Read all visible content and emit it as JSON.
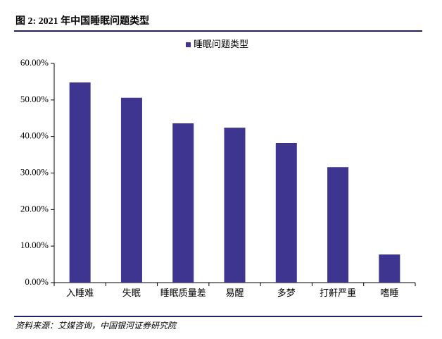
{
  "chart_data": {
    "type": "bar",
    "title": "图 2: 2021 年中国睡眠问题类型",
    "source": "资料来源：艾媒咨询，中国银河证券研究院",
    "categories": [
      "入睡难",
      "失眠",
      "睡眠质量差",
      "易醒",
      "多梦",
      "打鼾严重",
      "嗜睡"
    ],
    "series": [
      {
        "name": "睡眠问题类型",
        "color": "#3d3590",
        "values": [
          54.8,
          50.6,
          43.6,
          42.4,
          38.2,
          31.6,
          7.7
        ]
      }
    ],
    "ylim": [
      0,
      60
    ],
    "yticks": [
      {
        "value": 0,
        "label": "0.00%"
      },
      {
        "value": 10,
        "label": "10.00%"
      },
      {
        "value": 20,
        "label": "20.00%"
      },
      {
        "value": 30,
        "label": "30.00%"
      },
      {
        "value": 40,
        "label": "40.00%"
      },
      {
        "value": 50,
        "label": "50.00%"
      },
      {
        "value": 60,
        "label": "60.00%"
      }
    ],
    "grid": false,
    "legend": "top"
  }
}
